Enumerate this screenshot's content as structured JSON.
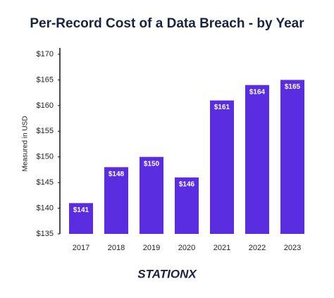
{
  "chart_data": {
    "type": "bar",
    "title": "Per-Record Cost of a Data Breach - by Year",
    "y_label": "Measured in USD",
    "categories": [
      "2017",
      "2018",
      "2019",
      "2020",
      "2021",
      "2022",
      "2023"
    ],
    "values": [
      141,
      148,
      150,
      146,
      161,
      164,
      165
    ],
    "value_labels": [
      "$141",
      "$148",
      "$150",
      "$146",
      "$161",
      "$164",
      "$165"
    ],
    "color": "#5a2ee0",
    "ylim": [
      135,
      170
    ],
    "yticks": [
      {
        "value": 135,
        "label": "$135"
      },
      {
        "value": 140,
        "label": "$140"
      },
      {
        "value": 145,
        "label": "$145"
      },
      {
        "value": 150,
        "label": "$150"
      },
      {
        "value": 155,
        "label": "$155"
      },
      {
        "value": 160,
        "label": "$160"
      },
      {
        "value": 165,
        "label": "$165"
      },
      {
        "value": 170,
        "label": "$170"
      }
    ],
    "grid": false,
    "logo": "STATIONX"
  }
}
